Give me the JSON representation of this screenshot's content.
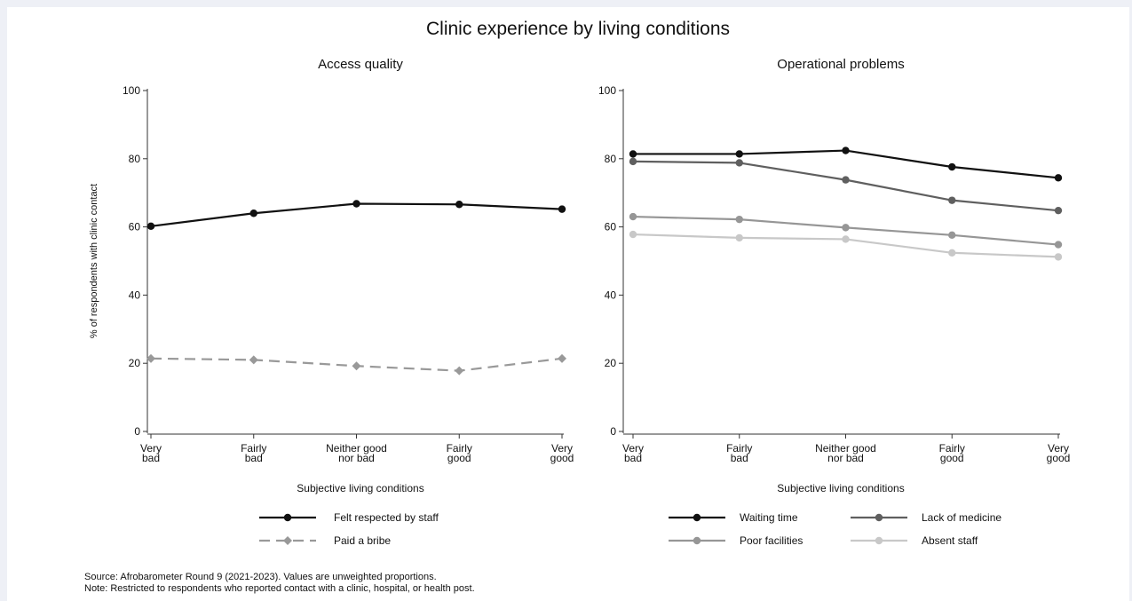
{
  "figure": {
    "title": "Clinic experience by living conditions",
    "note_source": "Source: Afrobarometer Round 9 (2021-2023). Values are unweighted proportions.",
    "note_restriction": "Note: Restricted to respondents who reported contact with a clinic, hospital, or health post."
  },
  "chart_data": [
    {
      "type": "line",
      "title": "Access quality",
      "xlabel": "Subjective living conditions",
      "ylabel": "% of respondents with clinic contact",
      "categories": [
        [
          "Very",
          "bad"
        ],
        [
          "Fairly",
          "bad"
        ],
        [
          "Neither good",
          "nor bad"
        ],
        [
          "Fairly",
          "good"
        ],
        [
          "Very",
          "good"
        ]
      ],
      "yticks": [
        0,
        20,
        40,
        60,
        80,
        100
      ],
      "ylim": [
        0,
        100
      ],
      "grid": false,
      "legend_position": "bottom",
      "series": [
        {
          "name": "Felt respected by staff",
          "values": [
            60.2,
            64.0,
            66.8,
            66.6,
            65.2
          ],
          "color": "#111111",
          "dash": "",
          "marker": "circle"
        },
        {
          "name": "Paid a bribe",
          "values": [
            21.4,
            21.0,
            19.2,
            17.8,
            21.4
          ],
          "color": "#999999",
          "dash": "12,7",
          "marker": "diamond"
        }
      ]
    },
    {
      "type": "line",
      "title": "Operational problems",
      "xlabel": "Subjective living conditions",
      "ylabel": "",
      "categories": [
        [
          "Very",
          "bad"
        ],
        [
          "Fairly",
          "bad"
        ],
        [
          "Neither good",
          "nor bad"
        ],
        [
          "Fairly",
          "good"
        ],
        [
          "Very",
          "good"
        ]
      ],
      "yticks": [
        0,
        20,
        40,
        60,
        80,
        100
      ],
      "ylim": [
        0,
        100
      ],
      "grid": false,
      "legend_position": "bottom",
      "series": [
        {
          "name": "Waiting time",
          "values": [
            81.4,
            81.4,
            82.4,
            77.6,
            74.4
          ],
          "color": "#111111",
          "dash": "",
          "marker": "circle"
        },
        {
          "name": "Lack of medicine",
          "values": [
            79.2,
            78.8,
            73.8,
            67.8,
            64.8
          ],
          "color": "#5f5f5f",
          "dash": "",
          "marker": "circle"
        },
        {
          "name": "Poor facilities",
          "values": [
            63.0,
            62.2,
            59.8,
            57.6,
            54.8
          ],
          "color": "#969696",
          "dash": "",
          "marker": "circle"
        },
        {
          "name": "Absent staff",
          "values": [
            57.8,
            56.8,
            56.4,
            52.4,
            51.2
          ],
          "color": "#c8c8c8",
          "dash": "",
          "marker": "circle"
        }
      ]
    }
  ]
}
